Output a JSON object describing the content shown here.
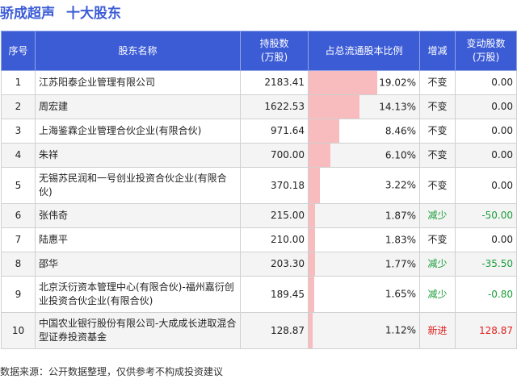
{
  "title": {
    "company": "骄成超声",
    "section": "十大股东"
  },
  "headers": {
    "rank": "序号",
    "holder": "股东名称",
    "shares": "持股数\n(万股)",
    "ratio": "占总流通股本比例",
    "change_dir": "增减",
    "change_amt": "变动股数\n(万股)"
  },
  "rows": [
    {
      "rank": "1",
      "holder": "江苏阳泰企业管理有限公司",
      "shares": "2183.41",
      "ratio": "19.02%",
      "ratio_value": 19.02,
      "change_dir": "不变",
      "change_amt": "0.00",
      "status": "same"
    },
    {
      "rank": "2",
      "holder": "周宏建",
      "shares": "1622.53",
      "ratio": "14.13%",
      "ratio_value": 14.13,
      "change_dir": "不变",
      "change_amt": "0.00",
      "status": "same"
    },
    {
      "rank": "3",
      "holder": "上海鉴霖企业管理合伙企业(有限合伙)",
      "shares": "971.64",
      "ratio": "8.46%",
      "ratio_value": 8.46,
      "change_dir": "不变",
      "change_amt": "0.00",
      "status": "same"
    },
    {
      "rank": "4",
      "holder": "朱祥",
      "shares": "700.00",
      "ratio": "6.10%",
      "ratio_value": 6.1,
      "change_dir": "不变",
      "change_amt": "0.00",
      "status": "same"
    },
    {
      "rank": "5",
      "holder": "无锡苏民润和一号创业投资合伙企业(有限合伙)",
      "shares": "370.18",
      "ratio": "3.22%",
      "ratio_value": 3.22,
      "change_dir": "不变",
      "change_amt": "0.00",
      "status": "same"
    },
    {
      "rank": "6",
      "holder": "张伟奇",
      "shares": "215.00",
      "ratio": "1.87%",
      "ratio_value": 1.87,
      "change_dir": "减少",
      "change_amt": "-50.00",
      "status": "down"
    },
    {
      "rank": "7",
      "holder": "陆惠平",
      "shares": "210.00",
      "ratio": "1.83%",
      "ratio_value": 1.83,
      "change_dir": "不变",
      "change_amt": "0.00",
      "status": "same"
    },
    {
      "rank": "8",
      "holder": "邵华",
      "shares": "203.30",
      "ratio": "1.77%",
      "ratio_value": 1.77,
      "change_dir": "减少",
      "change_amt": "-35.50",
      "status": "down"
    },
    {
      "rank": "9",
      "holder": "北京沃衍资本管理中心(有限合伙)-福州嘉衍创业投资合伙企业(有限合伙)",
      "shares": "189.45",
      "ratio": "1.65%",
      "ratio_value": 1.65,
      "change_dir": "减少",
      "change_amt": "-0.80",
      "status": "down"
    },
    {
      "rank": "10",
      "holder": "中国农业银行股份有限公司-大成成长进取混合型证券投资基金",
      "shares": "128.87",
      "ratio": "1.12%",
      "ratio_value": 1.12,
      "change_dir": "新进",
      "change_amt": "128.87",
      "status": "new"
    }
  ],
  "bar_max": 19.02,
  "colors": {
    "header_bg": "#3c5cd6",
    "bar": "#f8bcbe",
    "down": "#1a9e3a",
    "new": "#e02020"
  },
  "footer": "数据来源：公开数据整理，仅供参考不构成投资建议"
}
